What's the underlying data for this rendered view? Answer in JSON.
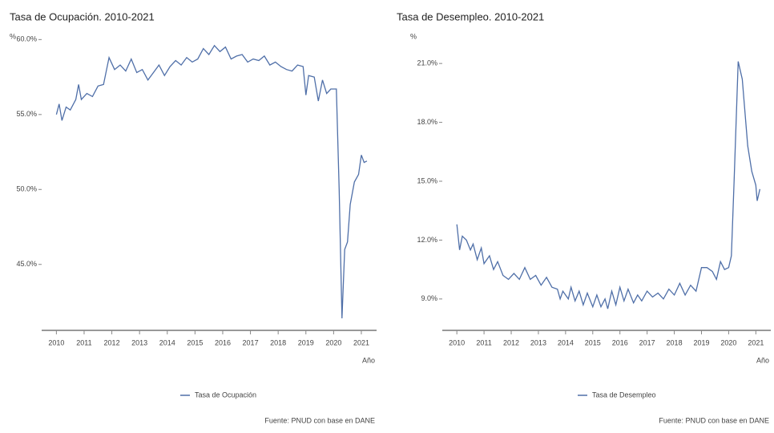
{
  "chart_data": [
    {
      "type": "line",
      "title": "Tasa de Ocupación. 2010-2021",
      "y_label": "%",
      "x_label": "Año",
      "x": [
        2010.0,
        2010.1,
        2010.2,
        2010.35,
        2010.5,
        2010.7,
        2010.8,
        2010.9,
        2011.1,
        2011.3,
        2011.5,
        2011.7,
        2011.9,
        2012.1,
        2012.3,
        2012.5,
        2012.7,
        2012.9,
        2013.1,
        2013.3,
        2013.5,
        2013.7,
        2013.9,
        2014.1,
        2014.3,
        2014.5,
        2014.7,
        2014.9,
        2015.1,
        2015.3,
        2015.5,
        2015.7,
        2015.9,
        2016.1,
        2016.3,
        2016.5,
        2016.7,
        2016.9,
        2017.1,
        2017.3,
        2017.5,
        2017.7,
        2017.9,
        2018.1,
        2018.3,
        2018.5,
        2018.7,
        2018.9,
        2019.0,
        2019.1,
        2019.3,
        2019.45,
        2019.6,
        2019.75,
        2019.9,
        2020.1,
        2020.2,
        2020.3,
        2020.4,
        2020.5,
        2020.6,
        2020.75,
        2020.9,
        2021.0,
        2021.1,
        2021.2
      ],
      "series": [
        {
          "name": "Tasa de Ocupación",
          "color": "#4f6fa8",
          "values": [
            55.0,
            55.7,
            54.6,
            55.5,
            55.3,
            56.0,
            57.0,
            56.0,
            56.4,
            56.2,
            56.9,
            57.0,
            58.8,
            58.0,
            58.3,
            57.9,
            58.7,
            57.8,
            58.0,
            57.3,
            57.8,
            58.3,
            57.6,
            58.2,
            58.6,
            58.3,
            58.8,
            58.5,
            58.7,
            59.4,
            59.0,
            59.6,
            59.2,
            59.5,
            58.7,
            58.9,
            59.0,
            58.5,
            58.7,
            58.6,
            58.9,
            58.3,
            58.5,
            58.2,
            58.0,
            57.9,
            58.3,
            58.2,
            56.3,
            57.6,
            57.5,
            55.9,
            57.3,
            56.4,
            56.7,
            56.7,
            50.0,
            41.4,
            46.0,
            46.5,
            49.0,
            50.5,
            51.0,
            52.3,
            51.8,
            51.9
          ]
        }
      ],
      "xlim": [
        2009.7,
        2021.55
      ],
      "xticks": [
        2010,
        2011,
        2012,
        2013,
        2014,
        2015,
        2016,
        2017,
        2018,
        2019,
        2020,
        2021
      ],
      "ylim": [
        40.6,
        60.5
      ],
      "yticks": [
        {
          "value": 45,
          "label": "45.0%"
        },
        {
          "value": 50,
          "label": "50.0%"
        },
        {
          "value": 55,
          "label": "55.0%"
        },
        {
          "value": 60,
          "label": "60.0%"
        }
      ],
      "source": "Fuente: PNUD con base en DANE"
    },
    {
      "type": "line",
      "title": "Tasa de Desempleo. 2010-2021",
      "y_label": "%",
      "x_label": "Año",
      "x": [
        2010.0,
        2010.1,
        2010.2,
        2010.35,
        2010.5,
        2010.6,
        2010.75,
        2010.9,
        2011.0,
        2011.2,
        2011.35,
        2011.5,
        2011.7,
        2011.9,
        2012.1,
        2012.3,
        2012.5,
        2012.7,
        2012.9,
        2013.1,
        2013.3,
        2013.5,
        2013.7,
        2013.8,
        2013.9,
        2014.1,
        2014.2,
        2014.35,
        2014.5,
        2014.65,
        2014.8,
        2015.0,
        2015.15,
        2015.3,
        2015.45,
        2015.55,
        2015.7,
        2015.85,
        2016.0,
        2016.15,
        2016.3,
        2016.5,
        2016.65,
        2016.8,
        2017.0,
        2017.2,
        2017.4,
        2017.6,
        2017.8,
        2018.0,
        2018.2,
        2018.4,
        2018.6,
        2018.8,
        2019.0,
        2019.2,
        2019.4,
        2019.55,
        2019.7,
        2019.85,
        2020.0,
        2020.1,
        2020.2,
        2020.35,
        2020.5,
        2020.7,
        2020.85,
        2021.0,
        2021.05,
        2021.15
      ],
      "series": [
        {
          "name": "Tasa de Desempleo",
          "color": "#4f6fa8",
          "values": [
            12.8,
            11.5,
            12.2,
            12.0,
            11.5,
            11.8,
            11.0,
            11.6,
            10.8,
            11.2,
            10.5,
            10.9,
            10.2,
            10.0,
            10.3,
            10.0,
            10.6,
            10.0,
            10.2,
            9.7,
            10.1,
            9.6,
            9.5,
            9.0,
            9.4,
            9.0,
            9.6,
            8.9,
            9.4,
            8.7,
            9.3,
            8.6,
            9.2,
            8.6,
            9.0,
            8.5,
            9.4,
            8.7,
            9.6,
            8.9,
            9.5,
            8.8,
            9.2,
            8.9,
            9.4,
            9.1,
            9.3,
            9.0,
            9.5,
            9.2,
            9.8,
            9.2,
            9.7,
            9.4,
            10.6,
            10.6,
            10.4,
            10.0,
            10.9,
            10.5,
            10.6,
            11.2,
            15.0,
            21.1,
            20.2,
            16.8,
            15.5,
            14.8,
            14.0,
            14.6
          ]
        }
      ],
      "xlim": [
        2009.7,
        2021.55
      ],
      "xticks": [
        2010,
        2011,
        2012,
        2013,
        2014,
        2015,
        2016,
        2017,
        2018,
        2019,
        2020,
        2021
      ],
      "ylim": [
        7.4,
        22.6
      ],
      "yticks": [
        {
          "value": 9,
          "label": "9.0%"
        },
        {
          "value": 12,
          "label": "12.0%"
        },
        {
          "value": 15,
          "label": "15.0%"
        },
        {
          "value": 18,
          "label": "18.0%"
        },
        {
          "value": 21,
          "label": "21.0%"
        }
      ],
      "source": "Fuente: PNUD con base en DANE"
    }
  ]
}
